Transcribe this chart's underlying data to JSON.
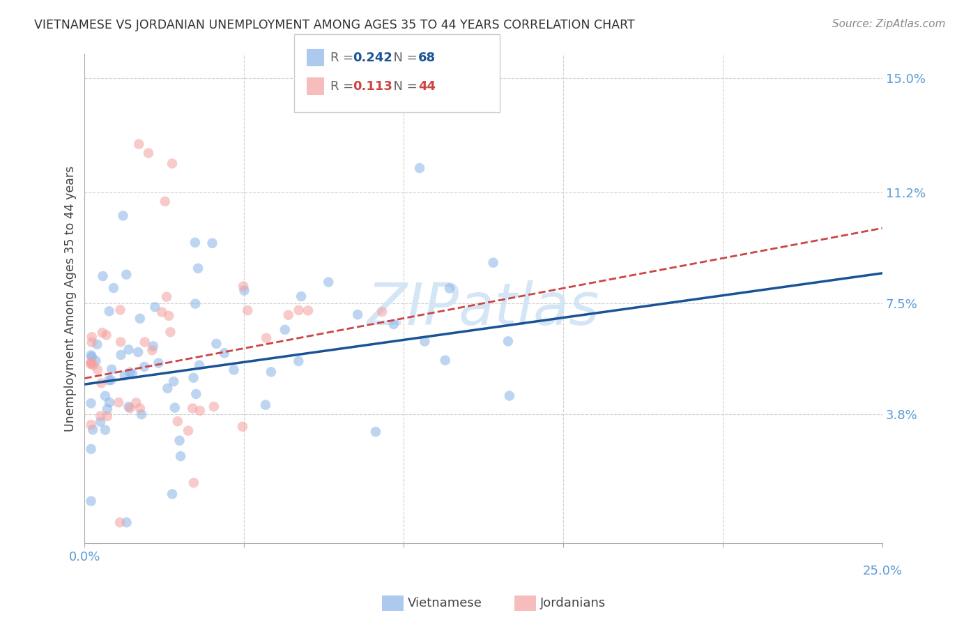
{
  "title": "VIETNAMESE VS JORDANIAN UNEMPLOYMENT AMONG AGES 35 TO 44 YEARS CORRELATION CHART",
  "source": "Source: ZipAtlas.com",
  "ylabel": "Unemployment Among Ages 35 to 44 years",
  "xlim": [
    0.0,
    0.25
  ],
  "ylim": [
    -0.005,
    0.158
  ],
  "xticks": [
    0.0,
    0.05,
    0.1,
    0.15,
    0.2,
    0.25
  ],
  "ytick_positions": [
    0.038,
    0.075,
    0.112,
    0.15
  ],
  "ytick_labels": [
    "3.8%",
    "7.5%",
    "11.2%",
    "15.0%"
  ],
  "viet_R": 0.242,
  "viet_N": 68,
  "jord_R": 0.113,
  "jord_N": 44,
  "viet_color": "#8ab4e8",
  "jord_color": "#f4a0a0",
  "viet_line_color": "#1a5296",
  "jord_line_color": "#cc4444",
  "title_color": "#333333",
  "axis_color": "#5b9bd5",
  "watermark_color": "#d0e4f5",
  "background_color": "#ffffff"
}
